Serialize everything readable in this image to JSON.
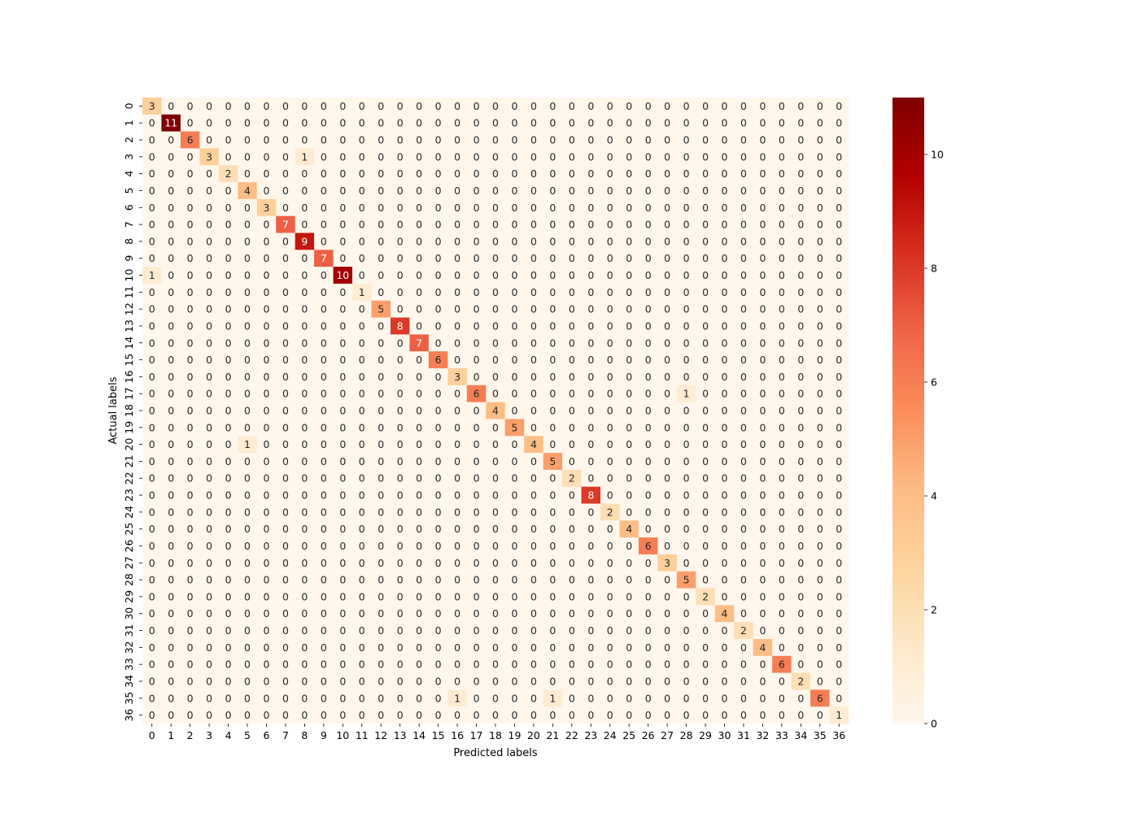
{
  "chart_data": {
    "type": "heatmap",
    "title": "",
    "xlabel": "Predicted labels",
    "ylabel": "Actual labels",
    "x_categories": [
      "0",
      "1",
      "2",
      "3",
      "4",
      "5",
      "6",
      "7",
      "8",
      "9",
      "10",
      "11",
      "12",
      "13",
      "14",
      "15",
      "16",
      "17",
      "18",
      "19",
      "20",
      "21",
      "22",
      "23",
      "24",
      "25",
      "26",
      "27",
      "28",
      "29",
      "30",
      "31",
      "32",
      "33",
      "34",
      "35",
      "36"
    ],
    "y_categories": [
      "0",
      "1",
      "2",
      "3",
      "4",
      "5",
      "6",
      "7",
      "8",
      "9",
      "10",
      "11",
      "12",
      "13",
      "14",
      "15",
      "16",
      "17",
      "18",
      "19",
      "20",
      "21",
      "22",
      "23",
      "24",
      "25",
      "26",
      "27",
      "28",
      "29",
      "30",
      "31",
      "32",
      "33",
      "34",
      "35",
      "36"
    ],
    "diagonal": [
      3,
      11,
      6,
      3,
      2,
      4,
      3,
      7,
      9,
      7,
      10,
      1,
      5,
      8,
      7,
      6,
      3,
      6,
      4,
      5,
      4,
      5,
      2,
      8,
      2,
      4,
      6,
      3,
      5,
      2,
      4,
      2,
      4,
      6,
      2,
      6,
      1
    ],
    "off_diagonal": [
      {
        "row": 3,
        "col": 8,
        "value": 1
      },
      {
        "row": 10,
        "col": 0,
        "value": 1
      },
      {
        "row": 17,
        "col": 28,
        "value": 1
      },
      {
        "row": 20,
        "col": 5,
        "value": 1
      },
      {
        "row": 35,
        "col": 16,
        "value": 1
      },
      {
        "row": 35,
        "col": 21,
        "value": 1
      }
    ],
    "colormap": "OrRd",
    "value_range": [
      0,
      11
    ],
    "colorbar_ticks": [
      0,
      2,
      4,
      6,
      8,
      10
    ],
    "cell_annotations": true
  }
}
